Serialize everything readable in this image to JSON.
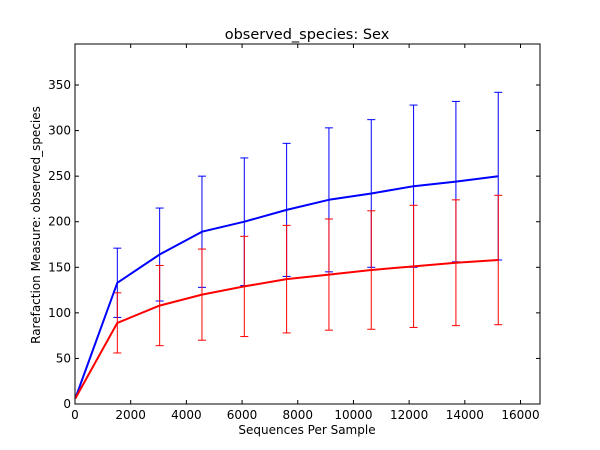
{
  "chart_data": {
    "type": "line",
    "title": "observed_species: Sex",
    "xlabel": "Sequences Per Sample",
    "ylabel": "Rarefaction Measure: observed_species",
    "xlim": [
      0,
      16700
    ],
    "ylim": [
      0,
      395
    ],
    "xticks": [
      0,
      2000,
      4000,
      6000,
      8000,
      10000,
      12000,
      14000,
      16000
    ],
    "yticks": [
      0,
      50,
      100,
      150,
      200,
      250,
      300,
      350
    ],
    "grid": false,
    "x": [
      10,
      1520,
      3040,
      4560,
      6080,
      7600,
      9120,
      10640,
      12160,
      13680,
      15200
    ],
    "series": [
      {
        "color": "#0000ff",
        "values": [
          6,
          133,
          164,
          189,
          200,
          213,
          224,
          231,
          239,
          244,
          250
        ],
        "errors": [
          0,
          38,
          51,
          61,
          70,
          73,
          79,
          81,
          89,
          88,
          92
        ]
      },
      {
        "color": "#ff0000",
        "values": [
          6,
          89,
          108,
          120,
          129,
          137,
          142,
          147,
          151,
          155,
          158
        ],
        "errors": [
          0,
          33,
          44,
          50,
          55,
          59,
          61,
          65,
          67,
          69,
          71
        ]
      }
    ]
  }
}
